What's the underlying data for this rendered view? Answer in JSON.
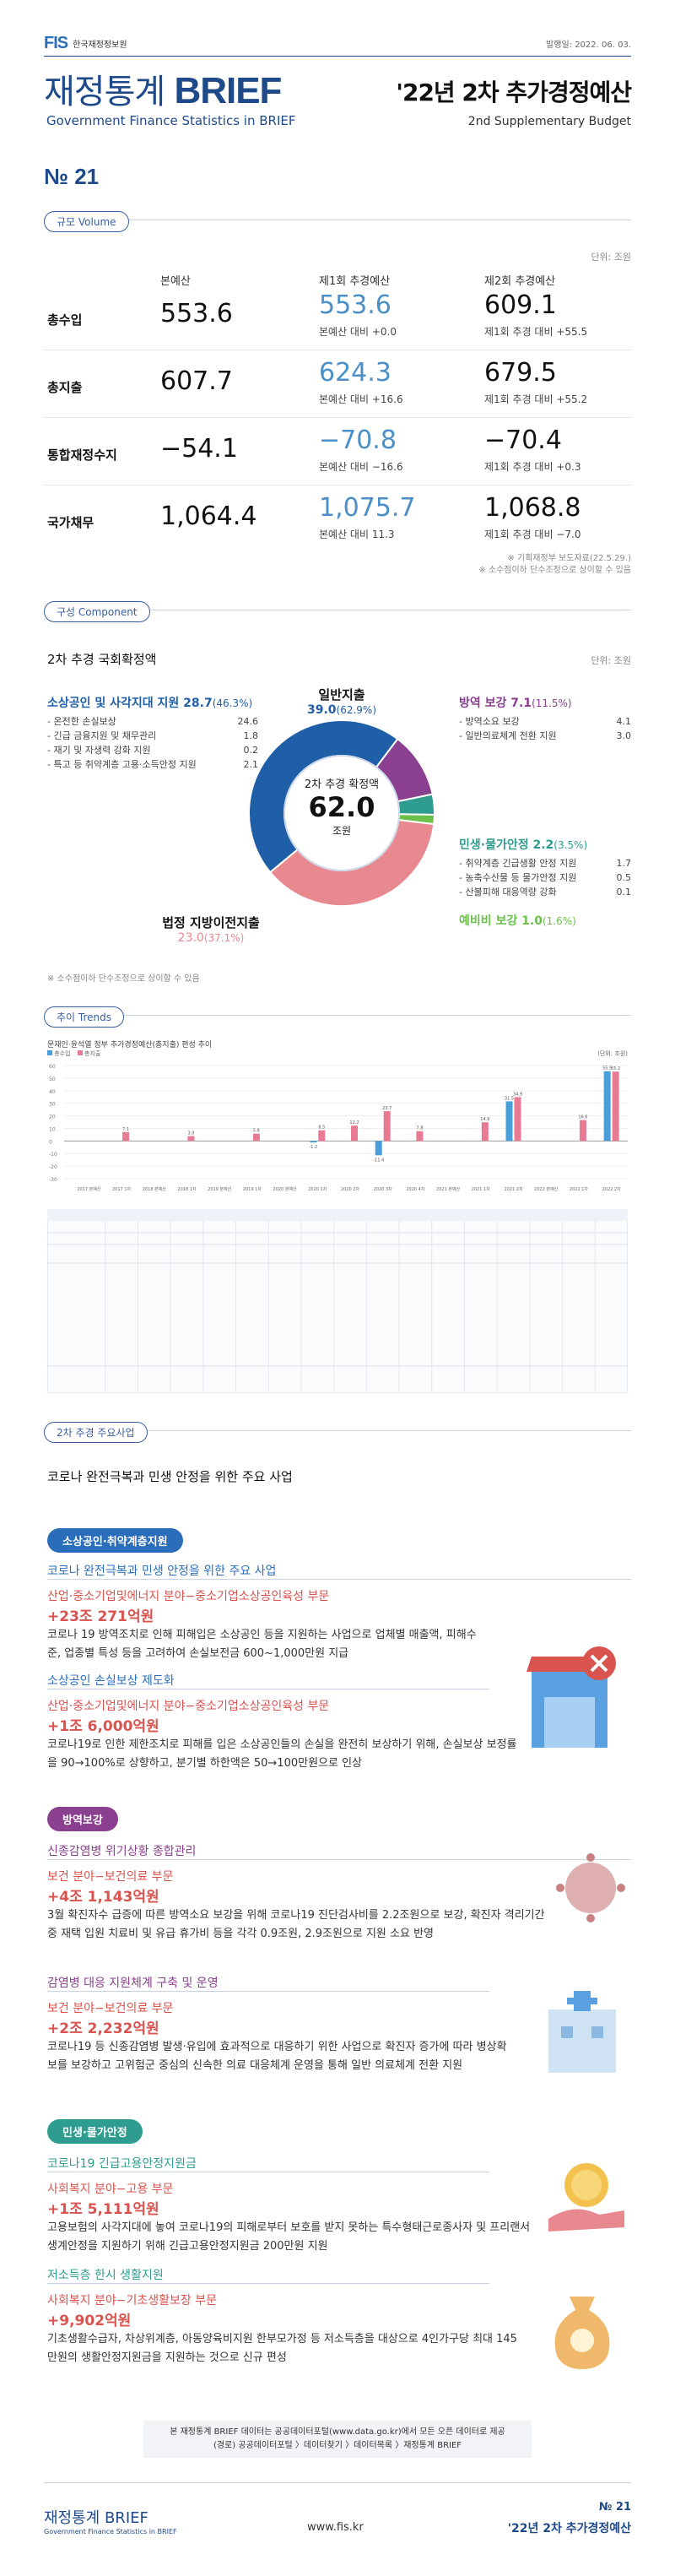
{
  "header": {
    "logo_mark": "FIS",
    "logo_text": "한국재정정보원",
    "pub_date": "발행일: 2022. 06. 03.",
    "brand_ko": "재정통계",
    "brand_en_word": "BRIEF",
    "brand_full_en": "Government Finance Statistics in BRIEF",
    "subtitle": "'22년 2차 추가경정예산",
    "subtitle_en": "2nd Supplementary Budget",
    "issue": "№ 21"
  },
  "volume": {
    "section_label": "규모 Volume",
    "unit": "단위: 조원",
    "col_base": "본예산",
    "col_c1": "제1회 추경예산",
    "col_c2": "제2회 추경예산",
    "rows": [
      {
        "label": "총수입",
        "base": "553.6",
        "c1": "553.6",
        "c1_sub": "본예산 대비 +0.0",
        "c2": "609.1",
        "c2_sub": "제1회 추경 대비 +55.5"
      },
      {
        "label": "총지출",
        "base": "607.7",
        "c1": "624.3",
        "c1_sub": "본예산 대비 +16.6",
        "c2": "679.5",
        "c2_sub": "제1회 추경 대비 +55.2"
      },
      {
        "label": "통합재정수지",
        "base": "−54.1",
        "c1": "−70.8",
        "c1_sub": "본예산 대비 −16.6",
        "c2": "−70.4",
        "c2_sub": "제1회 추경 대비 +0.3"
      },
      {
        "label": "국가채무",
        "base": "1,064.4",
        "c1": "1,075.7",
        "c1_sub": "본예산 대비 11.3",
        "c2": "1,068.8",
        "c2_sub": "제1회 추경 대비 −7.0"
      }
    ],
    "note1": "※ 기획재정부 보도자료(22.5.29.)",
    "note2": "※ 소수점이하 단수조정으로 상이할 수 있음"
  },
  "component": {
    "section_label": "구성 Component",
    "title": "2차 추경 국회확정액",
    "unit": "단위: 조원",
    "center_label": "2차 추경 확정액",
    "center_value": "62.0",
    "center_unit": "조원",
    "note": "※ 소수점이하 단수조정으로 상이할 수 있음",
    "colors": {
      "blue": "#1f5fa8",
      "pink": "#e8888f",
      "purple": "#8a3f8f",
      "green": "#2e9d8f",
      "lightgreen": "#6cc04a"
    },
    "cats": {
      "small_biz": {
        "title": "소상공인 및 사각지대 지원 28.7",
        "pct": "(46.3%)",
        "items": [
          {
            "name": "- 온전한 손실보상",
            "value": "24.6"
          },
          {
            "name": "- 긴급 금융지원 및 채무관리",
            "value": "1.8"
          },
          {
            "name": "- 재기 및 자생력 강화 지원",
            "value": "0.2"
          },
          {
            "name": "- 특고 등 취약계층 고용·소득안정 지원",
            "value": "2.1"
          }
        ]
      },
      "general": {
        "title": "일반지출",
        "value": "39.0",
        "pct": "(62.9%)"
      },
      "quarantine": {
        "title": "방역 보강",
        "value": "7.1",
        "pct": "(11.5%)",
        "items": [
          {
            "name": "- 방역소요 보강",
            "value": "4.1"
          },
          {
            "name": "- 일반의료체계 전환 지원",
            "value": "3.0"
          }
        ]
      },
      "livelihood": {
        "title": "민생·물가안정 2.2",
        "pct": "(3.5%)",
        "items": [
          {
            "name": "- 취약계층 긴급생활 안정 지원",
            "value": "1.7"
          },
          {
            "name": "- 농축수산물 등 물가안정 지원",
            "value": "0.5"
          },
          {
            "name": "- 산불피해 대응역량 강화",
            "value": "0.1"
          }
        ]
      },
      "reserve": {
        "title": "예비비 보강 1.0",
        "pct": "(1.6%)"
      },
      "local": {
        "title": "법정 지방이전지출",
        "value": "23.0",
        "pct": "(37.1%)"
      }
    },
    "slices": [
      {
        "name": "소상공인 및 사각지대 지원",
        "value": 28.7,
        "color": "#1f5fa8"
      },
      {
        "name": "방역 보강",
        "value": 7.1,
        "color": "#8a3f8f"
      },
      {
        "name": "민생·물가안정",
        "value": 2.2,
        "color": "#2e9d8f"
      },
      {
        "name": "예비비 보강",
        "value": 1.0,
        "color": "#6cc04a"
      },
      {
        "name": "법정 지방이전지출",
        "value": 23.0,
        "color": "#e8888f"
      }
    ]
  },
  "trends": {
    "section_label": "추이 Trends",
    "subtitle": "문재인·윤석열 정부 추가경정예산(총지출) 편성 추이",
    "legend_a": "총수입",
    "legend_b": "총지출",
    "unit": "(단위: 조원)"
  },
  "chart_data": {
    "type": "bar",
    "title": "문재인·윤석열 정부 추가경정예산(총지출) 편성 추이",
    "categories": [
      "2017 본예산",
      "2017 1차",
      "2018 본예산",
      "2018 1차",
      "2019 본예산",
      "2019 1차",
      "2020 본예산",
      "2020 1차",
      "2020 2차",
      "2020 3차",
      "2020 4차",
      "2021 본예산",
      "2021 1차",
      "2021 2차",
      "2022 본예산",
      "2022 1차",
      "2022 2차"
    ],
    "series": [
      {
        "name": "총수입",
        "values": [
          0,
          0,
          0,
          0,
          0,
          0,
          0,
          -1.2,
          0,
          -11.4,
          0,
          0,
          0,
          31.5,
          0,
          0,
          55.5
        ]
      },
      {
        "name": "총지출",
        "values": [
          0,
          7.1,
          0,
          3.9,
          0,
          5.8,
          0,
          8.5,
          12.2,
          23.7,
          7.8,
          0,
          14.9,
          34.9,
          0,
          16.6,
          55.2
        ]
      }
    ],
    "ylim": [
      -30,
      60
    ]
  },
  "projects": {
    "section_label": "2차 추경 주요사업",
    "heading": "코로나 완전극복과 민생 안정을 위한 주요 사업",
    "groups": {
      "g1": "소상공인·취약계층지원",
      "g2": "방역보강",
      "g3": "민생·물가안정"
    },
    "items": [
      {
        "title": "코로나 완전극복과 민생 안정을 위한 주요 사업",
        "dept": "산업·중소기업및에너지 분야−중소기업소상공인육성 부문",
        "amount": "+23조 271억원",
        "desc": "코로나 19 방역조치로 인해 피해입은 소상공인 등을 지원하는 사업으로 업체별 매출액, 피해수준, 업종별 특성 등을 고려하여 손실보전금 600~1,000만원 지급"
      },
      {
        "title": "소상공인 손실보상 제도화",
        "dept": "산업·중소기업및에너지 분야−중소기업소상공인육성 부문",
        "amount": "+1조 6,000억원",
        "desc": "코로나19로 인한 제한조치로 피해를 입은 소상공인들의 손실을 완전히 보상하기 위해, 손실보상 보정률을 90→100%로 상향하고, 분기별 하한액은 50→100만원으로 인상"
      },
      {
        "title": "신종감염병 위기상황 종합관리",
        "dept": "보건 분야−보건의료 부문",
        "amount": "+4조 1,143억원",
        "desc": "3월 확진자수 급증에 따른 방역소요 보강을 위해 코로나19 진단검사비를 2.2조원으로 보강, 확진자 격리기간 중 재택 입원 치료비 및 유급 휴가비 등을 각각 0.9조원, 2.9조원으로 지원 소요 반영"
      },
      {
        "title": "감염병 대응 지원체계 구축 및 운영",
        "dept": "보건 분야−보건의료 부문",
        "amount": "+2조 2,232억원",
        "desc": "코로나19 등 신종감염병 발생·유입에 효과적으로 대응하기 위한 사업으로 확진자 증가에 따라 병상확보를 보강하고 고위험군 중심의 신속한 의료 대응체계 운영을 통해 일반 의료체계 전환 지원"
      },
      {
        "title": "코로나19 긴급고용안정지원금",
        "dept": "사회복지 분야−고용 부문",
        "amount": "+1조 5,111억원",
        "desc": "고용보험의 사각지대에 놓여 코로나19의 피해로부터 보호를 받지 못하는 특수형태근로종사자 및 프리랜서 생계안정을 지원하기 위해 긴급고용안정지원금 200만원 지원"
      },
      {
        "title": "저소득층 한시 생활지원",
        "dept": "사회복지 분야−기초생활보장 부문",
        "amount": "+9,902억원",
        "desc": "기초생활수급자, 차상위계층, 아동양육비지원 한부모가정 등 저소득층을 대상으로 4인가구당 최대 145만원의 생활안정지원금을 지원하는 것으로 신규 편성"
      }
    ]
  },
  "footer": {
    "note_line1": "본 재정통계 BRIEF 데이터는 공공데이터포털(www.data.go.kr)에서 모든 오픈 데이터로 제공",
    "note_line2": "(경로) 공공데이터포털 〉데이터찾기 〉데이터목록 〉재정통계 BRIEF",
    "brand": "재정통계 BRIEF",
    "brand_en": "Government Finance Statistics in BRIEF",
    "url": "www.fis.kr",
    "no": "№ 21",
    "title": "'22년 2차 추가경정예산"
  }
}
